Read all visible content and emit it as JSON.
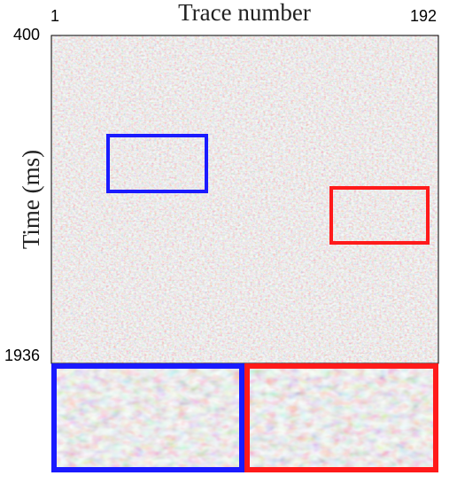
{
  "chart_data": {
    "type": "image",
    "xlabel": "Trace number",
    "ylabel": "Time (ms)",
    "xlim": [
      1,
      192
    ],
    "xticks": [
      1,
      192
    ],
    "ylim": [
      400,
      1936
    ],
    "yticks": [
      400,
      1936
    ]
  }
}
